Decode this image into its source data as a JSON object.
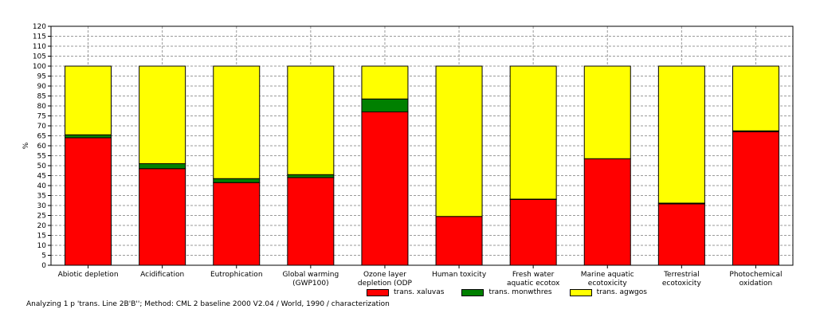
{
  "chart_data": {
    "type": "bar",
    "stacked": true,
    "ylabel": "%",
    "ylim": [
      0,
      120
    ],
    "ytick_step": 5,
    "grid": true,
    "legend_position": "bottom",
    "categories": [
      [
        "Abiotic depletion"
      ],
      [
        "Acidification"
      ],
      [
        "Eutrophication"
      ],
      [
        "Global warming",
        "(GWP100)"
      ],
      [
        "Ozone layer",
        "depletion (ODP"
      ],
      [
        "Human toxicity"
      ],
      [
        "Fresh water",
        "aquatic ecotox"
      ],
      [
        "Marine aquatic",
        "ecotoxicity"
      ],
      [
        "Terrestrial",
        "ecotoxicity"
      ],
      [
        "Photochemical",
        "oxidation"
      ]
    ],
    "series": [
      {
        "name": "trans. xaluvas",
        "color": "#ff0000",
        "values": [
          64,
          48.5,
          41.5,
          44,
          77,
          24.5,
          33,
          53.5,
          30.8,
          67
        ]
      },
      {
        "name": "trans. monwthres",
        "color": "#008000",
        "values": [
          1.5,
          2.5,
          2,
          1.5,
          6.5,
          0,
          0.2,
          0,
          0.4,
          0.5
        ]
      },
      {
        "name": "trans. agwgos",
        "color": "#ffff00",
        "values": [
          34.5,
          49,
          56.5,
          54.5,
          16.5,
          75.5,
          66.8,
          46.5,
          68.8,
          32.5
        ]
      }
    ]
  },
  "footer_text": "Analyzing 1 p 'trans. Line 2B'B'';  Method: CML 2 baseline 2000 V2.04 /  World, 1990 / characterization"
}
